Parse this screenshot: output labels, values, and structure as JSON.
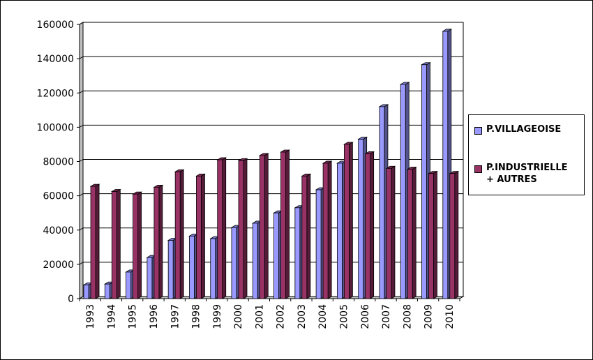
{
  "chart_data": {
    "type": "bar",
    "categories": [
      "1993",
      "1994",
      "1995",
      "1996",
      "1997",
      "1998",
      "1999",
      "2000",
      "2001",
      "2002",
      "2003",
      "2004",
      "2005",
      "2006",
      "2007",
      "2008",
      "2009",
      "2010"
    ],
    "series": [
      {
        "name": "P.VILLAGEOISE",
        "color": "#9999ff",
        "values": [
          8000,
          8500,
          15500,
          24000,
          34000,
          36500,
          35000,
          41500,
          44000,
          50000,
          53000,
          63500,
          79000,
          93000,
          112000,
          125000,
          136500,
          156000
        ]
      },
      {
        "name": "P.INDUSTRIELLE\n+ AUTRES",
        "color": "#993366",
        "values": [
          65500,
          62500,
          61000,
          65000,
          74000,
          71500,
          81000,
          80500,
          83500,
          85500,
          71500,
          79000,
          90000,
          84500,
          76000,
          75500,
          73000,
          73000
        ]
      }
    ],
    "ylim": [
      0,
      160000
    ],
    "yticks": [
      "0",
      "20000",
      "40000",
      "60000",
      "80000",
      "100000",
      "120000",
      "140000",
      "160000"
    ],
    "grid": true,
    "legend_position": "right",
    "title": "",
    "xlabel": "",
    "ylabel": ""
  }
}
